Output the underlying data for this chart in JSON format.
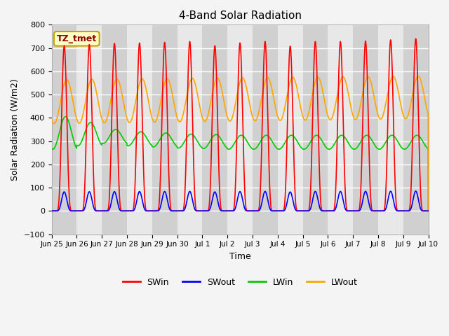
{
  "title": "4-Band Solar Radiation",
  "ylabel": "Solar Radiation (W/m2)",
  "xlabel": "Time",
  "annotation": "TZ_tmet",
  "ylim": [
    -100,
    800
  ],
  "yticks": [
    -100,
    0,
    100,
    200,
    300,
    400,
    500,
    600,
    700,
    800
  ],
  "num_days": 15,
  "colors": {
    "SWin": "#ff0000",
    "SWout": "#0000ff",
    "LWin": "#00cc00",
    "LWout": "#ffa500"
  },
  "line_width": 1.2,
  "plot_bg_color": "#e8e8e8",
  "alt_band_color1": "#d0d0d0",
  "alt_band_color2": "#e8e8e8",
  "grid_color": "#ffffff",
  "legend_entries": [
    "SWin",
    "SWout",
    "LWin",
    "LWout"
  ],
  "tick_labels": [
    "Jun 25",
    "Jun 26",
    "Jun 27",
    "Jun 28",
    "Jun 29",
    "Jun 30",
    "Jul 1",
    "Jul 2",
    "Jul 3",
    "Jul 4",
    "Jul 5",
    "Jul 6",
    "Jul 7",
    "Jul 8",
    "Jul 9",
    "Jul 10"
  ],
  "annotation_fg": "#8b0000",
  "annotation_bg": "#ffffc8",
  "annotation_edge": "#c8a000"
}
